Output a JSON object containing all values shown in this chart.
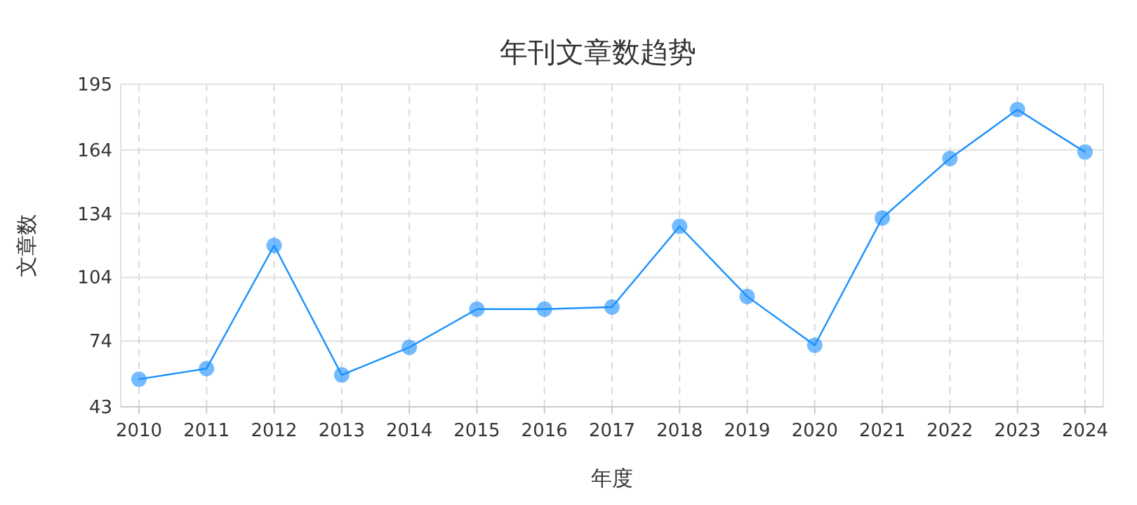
{
  "chart_data": {
    "type": "line",
    "title": "年刊文章数趋势",
    "xlabel": "年度",
    "ylabel": "文章数",
    "categories": [
      "2010",
      "2011",
      "2012",
      "2013",
      "2014",
      "2015",
      "2016",
      "2017",
      "2018",
      "2019",
      "2020",
      "2021",
      "2022",
      "2023",
      "2024"
    ],
    "series": [
      {
        "color": "#1890ff",
        "values": [
          56,
          61,
          119,
          58,
          71,
          89,
          89,
          90,
          128,
          95,
          72,
          132,
          160,
          183,
          163
        ]
      }
    ],
    "ylim": [
      43,
      195
    ],
    "yticks": [
      43,
      74,
      104,
      134,
      164,
      195
    ],
    "grid": true,
    "marker": "circle",
    "line_style": "solid"
  }
}
